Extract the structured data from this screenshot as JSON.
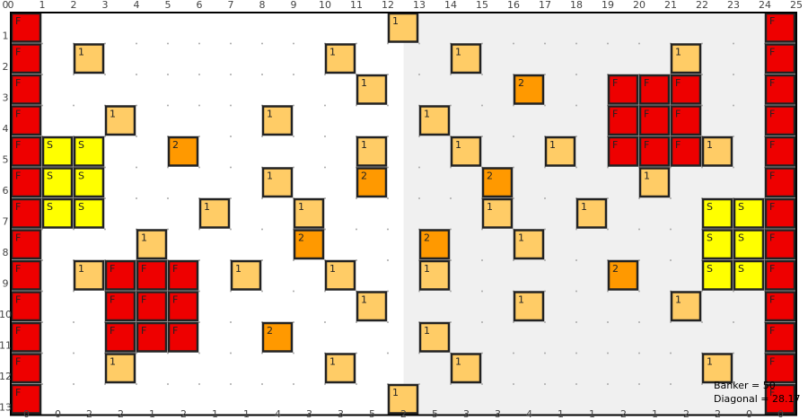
{
  "board": {
    "column_labels": [
      0,
      1,
      2,
      3,
      4,
      5,
      6,
      7,
      8,
      9,
      10,
      11,
      12,
      13,
      14,
      15,
      16,
      17,
      18,
      19,
      20,
      21,
      22,
      23,
      24,
      25
    ],
    "row_labels": [
      0,
      1,
      2,
      3,
      4,
      5,
      6,
      7,
      8,
      9,
      10,
      11,
      12,
      13
    ],
    "cells": [
      [
        "F",
        null,
        null,
        null,
        null,
        null,
        null,
        null,
        null,
        null,
        null,
        null,
        "1",
        null,
        null,
        null,
        null,
        null,
        null,
        null,
        null,
        null,
        null,
        null,
        "F"
      ],
      [
        "F",
        null,
        "1",
        null,
        null,
        null,
        null,
        null,
        null,
        null,
        "1",
        null,
        null,
        null,
        "1",
        null,
        null,
        null,
        null,
        null,
        null,
        "1",
        null,
        null,
        "F"
      ],
      [
        "F",
        null,
        null,
        null,
        null,
        null,
        null,
        null,
        null,
        null,
        null,
        "1",
        null,
        null,
        null,
        null,
        "2",
        null,
        null,
        "F",
        "F",
        "F",
        null,
        null,
        "F"
      ],
      [
        "F",
        null,
        null,
        "1",
        null,
        null,
        null,
        null,
        "1",
        null,
        null,
        null,
        null,
        "1",
        null,
        null,
        null,
        null,
        null,
        "F",
        "F",
        "F",
        null,
        null,
        "F"
      ],
      [
        "F",
        "S",
        "S",
        null,
        null,
        "2",
        null,
        null,
        null,
        null,
        null,
        "1",
        null,
        null,
        "1",
        null,
        null,
        "1",
        null,
        "F",
        "F",
        "F",
        "1",
        null,
        "F"
      ],
      [
        "F",
        "S",
        "S",
        null,
        null,
        null,
        null,
        null,
        "1",
        null,
        null,
        "2",
        null,
        null,
        null,
        "2",
        null,
        null,
        null,
        null,
        "1",
        null,
        null,
        null,
        "F"
      ],
      [
        "F",
        "S",
        "S",
        null,
        null,
        null,
        "1",
        null,
        null,
        "1",
        null,
        null,
        null,
        null,
        null,
        "1",
        null,
        null,
        "1",
        null,
        null,
        null,
        "S",
        "S",
        "F"
      ],
      [
        "F",
        null,
        null,
        null,
        "1",
        null,
        null,
        null,
        null,
        "2",
        null,
        null,
        null,
        "2",
        null,
        null,
        "1",
        null,
        null,
        null,
        null,
        null,
        "S",
        "S",
        "F"
      ],
      [
        "F",
        null,
        "1",
        "F",
        "F",
        "F",
        null,
        "1",
        null,
        null,
        "1",
        null,
        null,
        "1",
        null,
        null,
        null,
        null,
        null,
        "2",
        null,
        null,
        "S",
        "S",
        "F"
      ],
      [
        "F",
        null,
        null,
        "F",
        "F",
        "F",
        null,
        null,
        null,
        null,
        null,
        "1",
        null,
        null,
        null,
        null,
        "1",
        null,
        null,
        null,
        null,
        "1",
        null,
        null,
        "F"
      ],
      [
        "F",
        null,
        null,
        "F",
        "F",
        "F",
        null,
        null,
        "2",
        null,
        null,
        null,
        null,
        "1",
        null,
        null,
        null,
        null,
        null,
        null,
        null,
        null,
        null,
        null,
        "F"
      ],
      [
        "F",
        null,
        null,
        "1",
        null,
        null,
        null,
        null,
        null,
        null,
        "1",
        null,
        null,
        null,
        "1",
        null,
        null,
        null,
        null,
        null,
        null,
        null,
        "1",
        null,
        "F"
      ],
      [
        "F",
        null,
        null,
        null,
        null,
        null,
        null,
        null,
        null,
        null,
        null,
        null,
        "1",
        null,
        null,
        null,
        null,
        null,
        null,
        null,
        null,
        null,
        null,
        null,
        "F"
      ]
    ],
    "column_counts": [
      0,
      0,
      2,
      2,
      1,
      2,
      1,
      1,
      4,
      3,
      3,
      5,
      2,
      5,
      3,
      3,
      4,
      1,
      1,
      2,
      1,
      2,
      2,
      0,
      0
    ]
  },
  "status": {
    "banker": "Banker = 50",
    "diagonal": "Diagonal = 28.17"
  }
}
